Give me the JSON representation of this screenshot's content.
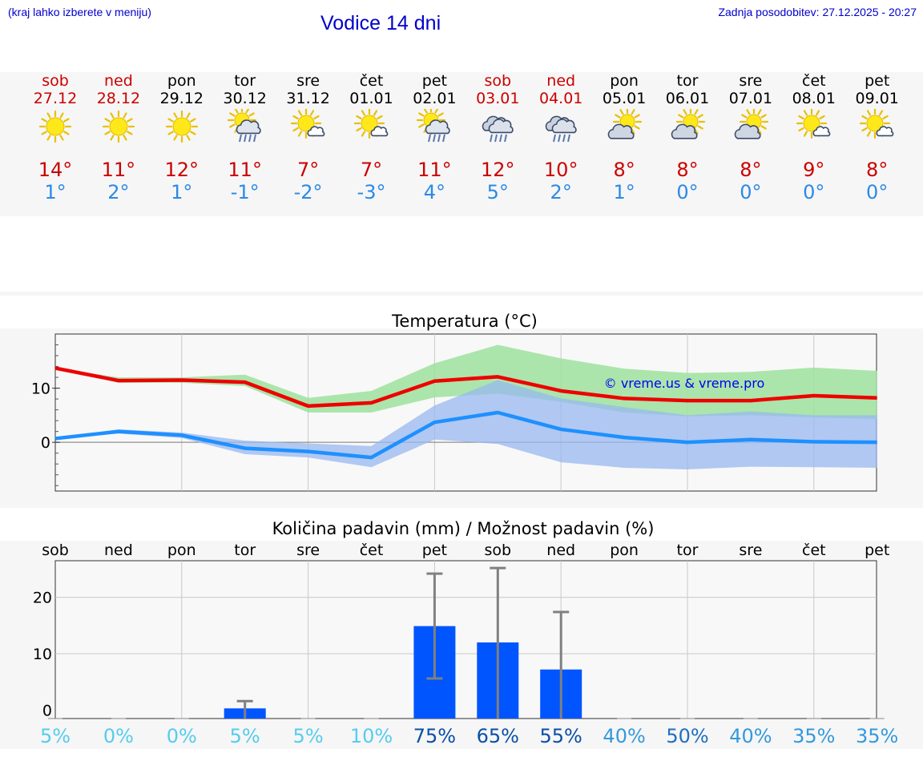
{
  "header": {
    "left_note": "(kraj lahko izberete v meniju)",
    "title": "Vodice 14 dni",
    "last_update": "Zadnja posodobitev: 27.12.2025 - 20:27"
  },
  "colors": {
    "weekend": "#cc0000",
    "max_temp": "#cc0000",
    "min_temp": "#2a8ae6",
    "max_line": "#ee0000",
    "min_line": "#1e90ff",
    "max_band": "#9ee29e",
    "min_band": "#98b8f0",
    "precip_bar": "#0055ff",
    "error_bar": "#808080"
  },
  "days": [
    {
      "name": "sob",
      "date": "27.12",
      "weekend": true,
      "icon": "sun-icon",
      "max": "14°",
      "min": "1°"
    },
    {
      "name": "ned",
      "date": "28.12",
      "weekend": true,
      "icon": "sun-icon",
      "max": "11°",
      "min": "2°"
    },
    {
      "name": "pon",
      "date": "29.12",
      "weekend": false,
      "icon": "sun-icon",
      "max": "12°",
      "min": "1°"
    },
    {
      "name": "tor",
      "date": "30.12",
      "weekend": false,
      "icon": "sun-cloud-rain-icon",
      "max": "11°",
      "min": "-1°"
    },
    {
      "name": "sre",
      "date": "31.12",
      "weekend": false,
      "icon": "sun-small-cloud-icon",
      "max": "7°",
      "min": "-2°"
    },
    {
      "name": "čet",
      "date": "01.01",
      "weekend": false,
      "icon": "sun-small-cloud-icon",
      "max": "7°",
      "min": "-3°"
    },
    {
      "name": "pet",
      "date": "02.01",
      "weekend": false,
      "icon": "sun-cloud-rain-icon",
      "max": "11°",
      "min": "4°"
    },
    {
      "name": "sob",
      "date": "03.01",
      "weekend": true,
      "icon": "cloud-rain-icon",
      "max": "12°",
      "min": "5°"
    },
    {
      "name": "ned",
      "date": "04.01",
      "weekend": true,
      "icon": "cloud-rain-icon",
      "max": "10°",
      "min": "2°"
    },
    {
      "name": "pon",
      "date": "05.01",
      "weekend": false,
      "icon": "sun-cloud-icon",
      "max": "8°",
      "min": "1°"
    },
    {
      "name": "tor",
      "date": "06.01",
      "weekend": false,
      "icon": "sun-cloud-icon",
      "max": "8°",
      "min": "0°"
    },
    {
      "name": "sre",
      "date": "07.01",
      "weekend": false,
      "icon": "sun-cloud-icon",
      "max": "8°",
      "min": "0°"
    },
    {
      "name": "čet",
      "date": "08.01",
      "weekend": false,
      "icon": "sun-small-cloud-icon",
      "max": "9°",
      "min": "0°"
    },
    {
      "name": "pet",
      "date": "09.01",
      "weekend": false,
      "icon": "sun-small-cloud-icon",
      "max": "8°",
      "min": "0°"
    }
  ],
  "chart_data": [
    {
      "type": "line",
      "title": "Temperatura (°C)",
      "watermark": "© vreme.us & vreme.pro",
      "ylim": [
        -9,
        20
      ],
      "yticks": [
        0,
        10
      ],
      "grid": true,
      "series": [
        {
          "name": "max",
          "values": [
            13.7,
            11.4,
            11.5,
            11.1,
            6.7,
            7.3,
            11.3,
            12.1,
            9.5,
            8.1,
            7.7,
            7.7,
            8.6,
            8.2
          ],
          "band_low": [
            13.7,
            11.0,
            11.0,
            10.4,
            5.5,
            5.5,
            8.3,
            9.0,
            7.5,
            5.5,
            4.8,
            5.0,
            4.6,
            4.3
          ],
          "band_high": [
            13.7,
            12.0,
            12.0,
            12.5,
            8.2,
            9.5,
            14.6,
            18.0,
            15.5,
            13.6,
            12.8,
            13.0,
            13.8,
            13.2
          ]
        },
        {
          "name": "min",
          "values": [
            0.7,
            2.0,
            1.3,
            -1.1,
            -1.7,
            -2.8,
            3.7,
            5.5,
            2.4,
            0.9,
            0.0,
            0.5,
            0.1,
            0.0
          ],
          "band_low": [
            0.7,
            1.6,
            0.8,
            -2.2,
            -2.8,
            -4.6,
            0.5,
            -0.3,
            -3.7,
            -4.7,
            -5.0,
            -4.5,
            -4.6,
            -4.7
          ],
          "band_high": [
            0.7,
            2.4,
            1.8,
            0.3,
            -0.2,
            -0.7,
            6.8,
            11.5,
            8.1,
            6.5,
            5.0,
            5.7,
            5.0,
            5.0
          ]
        }
      ]
    },
    {
      "type": "bar",
      "title": "Količina padavin (mm) / Možnost padavin (%)",
      "categories": [
        "sob",
        "ned",
        "pon",
        "tor",
        "sre",
        "čet",
        "pet",
        "sob",
        "ned",
        "pon",
        "tor",
        "sre",
        "čet",
        "pet"
      ],
      "values": [
        0,
        0,
        0,
        0.3,
        0,
        0,
        14.9,
        12.0,
        7.2,
        0,
        0,
        0,
        0,
        0
      ],
      "error_high": [
        0,
        0,
        0,
        1.6,
        0,
        0,
        24.2,
        25.2,
        17.4,
        0,
        0,
        0,
        0,
        0
      ],
      "error_low": [
        0,
        0,
        0,
        0,
        0,
        0,
        5.6,
        0,
        0,
        0,
        0,
        0,
        0,
        0
      ],
      "ylim": [
        -1.5,
        26.5
      ],
      "yticks": [
        0,
        10,
        20
      ],
      "probability": [
        "5%",
        "0%",
        "0%",
        "5%",
        "5%",
        "10%",
        "75%",
        "65%",
        "55%",
        "40%",
        "50%",
        "40%",
        "35%",
        "35%"
      ],
      "probability_colors": [
        "#55ccee",
        "#55ccee",
        "#55ccee",
        "#55ccee",
        "#55ccee",
        "#55ccee",
        "#0a4fa8",
        "#0a4fa8",
        "#0a4fa8",
        "#3399dd",
        "#1e6fc0",
        "#3399dd",
        "#3399dd",
        "#3399dd"
      ]
    }
  ]
}
